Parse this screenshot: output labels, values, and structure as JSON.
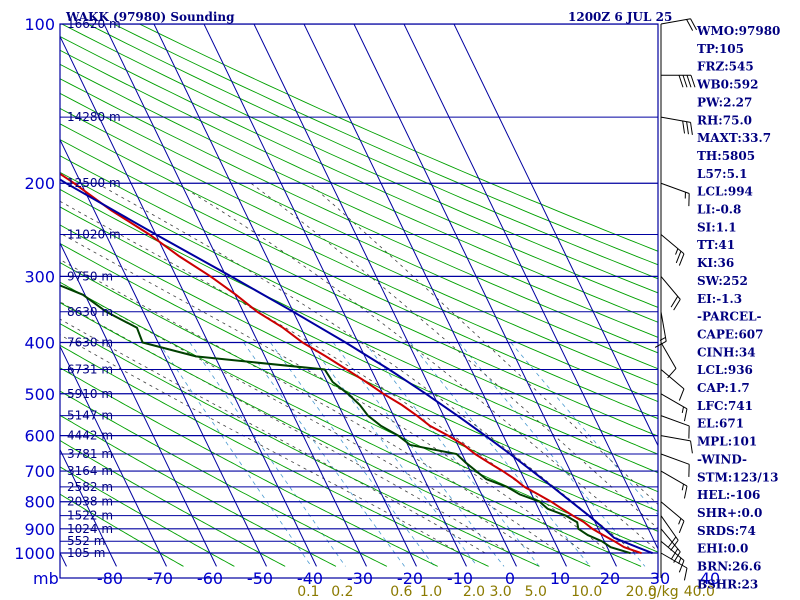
{
  "chart_data": {
    "type": "skew-t sounding",
    "title_left": "WAKK (97980) Sounding",
    "title_right": "1200Z  6 JUL 25",
    "pressure_label": "mb",
    "pressure_levels": [
      100,
      200,
      300,
      400,
      500,
      600,
      700,
      800,
      900,
      1000
    ],
    "temperature_ticks": [
      -80,
      -70,
      -60,
      -50,
      -40,
      -30,
      -20,
      -10,
      0,
      10,
      20,
      30,
      40
    ],
    "temperature_tick_labels": [
      "-80",
      "-70",
      "-60",
      "-50",
      "-40",
      "-30",
      "-20",
      "-10",
      "0",
      "10",
      "20",
      "30",
      "40"
    ],
    "mixing_ratio_label_unit": "g/kg",
    "mixing_ratios": [
      {
        "value": 0.1,
        "label": "0.1"
      },
      {
        "value": 0.2,
        "label": "0.2"
      },
      {
        "value": 0.6,
        "label": "0.6"
      },
      {
        "value": 1.0,
        "label": "1.0"
      },
      {
        "value": 2.0,
        "label": "2.0"
      },
      {
        "value": 3.0,
        "label": "3.0"
      },
      {
        "value": 5.0,
        "label": "5.0"
      },
      {
        "value": 10.0,
        "label": "10.0"
      },
      {
        "value": 20.0,
        "label": "20.0"
      },
      {
        "value": 40.0,
        "label": "40.0"
      }
    ],
    "height_levels": [
      {
        "p": 100,
        "label": "16620 m"
      },
      {
        "p": 150,
        "label": "14280 m"
      },
      {
        "p": 200,
        "label": "12500 m"
      },
      {
        "p": 250,
        "label": "11020 m"
      },
      {
        "p": 300,
        "label": "9750 m"
      },
      {
        "p": 350,
        "label": "8630 m"
      },
      {
        "p": 400,
        "label": "7630 m"
      },
      {
        "p": 450,
        "label": "6731 m"
      },
      {
        "p": 500,
        "label": "5910 m"
      },
      {
        "p": 550,
        "label": "5147 m"
      },
      {
        "p": 600,
        "label": "4442 m"
      },
      {
        "p": 650,
        "label": "3781 m"
      },
      {
        "p": 700,
        "label": "3164 m"
      },
      {
        "p": 750,
        "label": "2582 m"
      },
      {
        "p": 800,
        "label": "2038 m"
      },
      {
        "p": 850,
        "label": "1522 m"
      },
      {
        "p": 900,
        "label": "1024 m"
      },
      {
        "p": 950,
        "label": "552 m"
      },
      {
        "p": 1000,
        "label": "105 m"
      }
    ],
    "series": [
      {
        "name": "",
        "kind": "temperature",
        "color": "#cc0000",
        "points": [
          [
            1001,
            26.3
          ],
          [
            975,
            23.4
          ],
          [
            950,
            22.0
          ],
          [
            925,
            20.4
          ],
          [
            900,
            18.8
          ],
          [
            875,
            17.8
          ],
          [
            850,
            16.2
          ],
          [
            825,
            14.7
          ],
          [
            800,
            13.2
          ],
          [
            775,
            11.3
          ],
          [
            750,
            9.3
          ],
          [
            725,
            8.1
          ],
          [
            700,
            6.5
          ],
          [
            675,
            4.5
          ],
          [
            650,
            2.6
          ],
          [
            625,
            1.2
          ],
          [
            600,
            -1.0
          ],
          [
            575,
            -3.7
          ],
          [
            550,
            -5.3
          ],
          [
            525,
            -7.3
          ],
          [
            500,
            -9.9
          ],
          [
            475,
            -12.2
          ],
          [
            450,
            -14.9
          ],
          [
            425,
            -17.8
          ],
          [
            400,
            -21.1
          ],
          [
            375,
            -23.6
          ],
          [
            350,
            -27.2
          ],
          [
            325,
            -29.8
          ],
          [
            300,
            -33.1
          ],
          [
            275,
            -37.4
          ],
          [
            250,
            -41.3
          ],
          [
            225,
            -46.6
          ],
          [
            200,
            -51.4
          ],
          [
            175,
            -57.6
          ],
          [
            150,
            -65.4
          ],
          [
            125,
            -70.0
          ],
          [
            100,
            -77.4
          ]
        ]
      },
      {
        "name": "",
        "kind": "dewpoint",
        "color": "#004000",
        "points": [
          [
            1001,
            24.1
          ],
          [
            975,
            20.7
          ],
          [
            950,
            19.5
          ],
          [
            925,
            17.3
          ],
          [
            900,
            16.0
          ],
          [
            875,
            16.4
          ],
          [
            850,
            14.8
          ],
          [
            825,
            11.8
          ],
          [
            800,
            10.9
          ],
          [
            775,
            7.6
          ],
          [
            750,
            5.8
          ],
          [
            725,
            2.4
          ],
          [
            700,
            1.2
          ],
          [
            675,
            -0.1
          ],
          [
            650,
            -1.1
          ],
          [
            625,
            -9.5
          ],
          [
            600,
            -11.0
          ],
          [
            575,
            -13.5
          ],
          [
            550,
            -15.1
          ],
          [
            525,
            -15.7
          ],
          [
            500,
            -17.0
          ],
          [
            475,
            -18.9
          ],
          [
            450,
            -19.3
          ],
          [
            425,
            -43.8
          ],
          [
            400,
            -53.1
          ],
          [
            375,
            -52.8
          ],
          [
            350,
            -57.4
          ],
          [
            325,
            -60.4
          ],
          [
            300,
            -67.7
          ],
          [
            275,
            -67.6
          ],
          [
            250,
            -60.8
          ],
          [
            225,
            -65.2
          ],
          [
            200,
            -70.9
          ],
          [
            175,
            -73.8
          ],
          [
            150,
            -80.5
          ]
        ]
      },
      {
        "name": "",
        "kind": "parcel",
        "color": "#0000a0",
        "points": [
          [
            1001,
            28.5
          ],
          [
            975,
            26.0
          ],
          [
            950,
            23.6
          ],
          [
            936,
            22.3
          ],
          [
            900,
            21.2
          ],
          [
            850,
            19.4
          ],
          [
            800,
            17.2
          ],
          [
            750,
            14.9
          ],
          [
            700,
            12.4
          ],
          [
            650,
            9.6
          ],
          [
            600,
            6.4
          ],
          [
            550,
            2.8
          ],
          [
            500,
            -1.4
          ],
          [
            450,
            -6.4
          ],
          [
            400,
            -12.5
          ],
          [
            350,
            -20.0
          ],
          [
            300,
            -29.0
          ],
          [
            250,
            -40.0
          ],
          [
            200,
            -53.0
          ],
          [
            150,
            -68.0
          ],
          [
            101,
            -84.0
          ]
        ]
      }
    ],
    "wind_barbs_note": "",
    "indices": [
      "WMO:97980",
      "TP:105",
      "FRZ:545",
      "WB0:592",
      "PW:2.27",
      "RH:75.0",
      "MAXT:33.7",
      "TH:5805",
      "L57:5.1",
      "LCL:994",
      "LI:-0.8",
      "SI:1.1",
      "TT:41",
      "KI:36",
      "SW:252",
      "EI:-1.3",
      "-PARCEL-",
      "CAPE:607",
      "CINH:34",
      "LCL:936",
      "CAP:1.7",
      "LFC:741",
      "EL:671",
      "MPL:101",
      "-WIND-",
      "STM:123/13",
      "HEL:-106",
      "SHR+:0.0",
      "SRDS:74",
      "EHI:0.0",
      "BRN:26.6",
      "BSHR:23"
    ],
    "colors": {
      "isobar": "#0000a0",
      "isotherm": "#0000a0",
      "dry_adiabat": "#00a000",
      "moist_adiabat": "#404040",
      "mixing_ratio": "#4a9ad0",
      "temperature": "#cc0000",
      "dewpoint": "#004000",
      "parcel": "#0000a0",
      "mixing_ratio_label": "#8b7a00",
      "label_blue": "#0000cc",
      "text_navy": "#000080"
    },
    "winds": [
      {
        "p": 1000,
        "dir": 120,
        "spd": 10
      },
      {
        "p": 950,
        "dir": 130,
        "spd": 15
      },
      {
        "p": 900,
        "dir": 140,
        "spd": 20
      },
      {
        "p": 850,
        "dir": 145,
        "spd": 20
      },
      {
        "p": 800,
        "dir": 130,
        "spd": 15
      },
      {
        "p": 700,
        "dir": 120,
        "spd": 15
      },
      {
        "p": 650,
        "dir": 110,
        "spd": 10
      },
      {
        "p": 600,
        "dir": 100,
        "spd": 10
      },
      {
        "p": 550,
        "dir": 110,
        "spd": 10
      },
      {
        "p": 500,
        "dir": 120,
        "spd": 15
      },
      {
        "p": 450,
        "dir": 130,
        "spd": 10
      },
      {
        "p": 400,
        "dir": 150,
        "spd": 10
      },
      {
        "p": 350,
        "dir": 170,
        "spd": 15
      },
      {
        "p": 300,
        "dir": 140,
        "spd": 20
      },
      {
        "p": 250,
        "dir": 130,
        "spd": 25
      },
      {
        "p": 200,
        "dir": 110,
        "spd": 15
      },
      {
        "p": 150,
        "dir": 100,
        "spd": 30
      },
      {
        "p": 125,
        "dir": 90,
        "spd": 40
      },
      {
        "p": 100,
        "dir": 80,
        "spd": 20
      }
    ]
  }
}
